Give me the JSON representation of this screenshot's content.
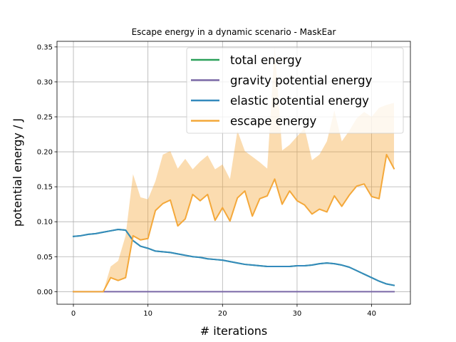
{
  "chart_data": {
    "type": "line",
    "title": "Escape energy in a dynamic scenario - MaskEar",
    "xlabel": "# iterations",
    "ylabel": "potential energy / J",
    "xlim": [
      -2.2,
      45.2
    ],
    "ylim": [
      -0.018,
      0.358
    ],
    "xticks": [
      0,
      10,
      20,
      30,
      40
    ],
    "yticks": [
      0.0,
      0.05,
      0.1,
      0.15,
      0.2,
      0.25,
      0.3,
      0.35
    ],
    "ytick_labels": [
      "0.00",
      "0.05",
      "0.10",
      "0.15",
      "0.20",
      "0.25",
      "0.30",
      "0.35"
    ],
    "grid": true,
    "legend": "top-right",
    "x": [
      0,
      1,
      2,
      3,
      4,
      5,
      6,
      7,
      8,
      9,
      10,
      11,
      12,
      13,
      14,
      15,
      16,
      17,
      18,
      19,
      20,
      21,
      22,
      23,
      24,
      25,
      26,
      27,
      28,
      29,
      30,
      31,
      32,
      33,
      34,
      35,
      36,
      37,
      38,
      39,
      40,
      41,
      42,
      43
    ],
    "series": [
      {
        "name": "total energy",
        "color": "#2ca05a",
        "values": [
          0.079,
          0.08,
          0.082,
          0.083,
          0.085,
          0.087,
          0.089,
          0.088,
          0.073,
          0.065,
          0.062,
          0.058,
          0.057,
          0.056,
          0.054,
          0.052,
          0.05,
          0.049,
          0.047,
          0.046,
          0.045,
          0.043,
          0.041,
          0.039,
          0.038,
          0.037,
          0.036,
          0.036,
          0.036,
          0.036,
          0.037,
          0.037,
          0.038,
          0.04,
          0.041,
          0.04,
          0.038,
          0.035,
          0.03,
          0.025,
          0.02,
          0.015,
          0.011,
          0.009
        ]
      },
      {
        "name": "gravity potential energy",
        "color": "#7a68a6",
        "values": [
          0,
          0,
          0,
          0,
          0,
          0,
          0,
          0,
          0,
          0,
          0,
          0,
          0,
          0,
          0,
          0,
          0,
          0,
          0,
          0,
          0,
          0,
          0,
          0,
          0,
          0,
          0,
          0,
          0,
          0,
          0,
          0,
          0,
          0,
          0,
          0,
          0,
          0,
          0,
          0,
          0,
          0,
          0,
          0
        ]
      },
      {
        "name": "elastic potential energy",
        "color": "#348abd",
        "values": [
          0.079,
          0.08,
          0.082,
          0.083,
          0.085,
          0.087,
          0.089,
          0.088,
          0.073,
          0.065,
          0.062,
          0.058,
          0.057,
          0.056,
          0.054,
          0.052,
          0.05,
          0.049,
          0.047,
          0.046,
          0.045,
          0.043,
          0.041,
          0.039,
          0.038,
          0.037,
          0.036,
          0.036,
          0.036,
          0.036,
          0.037,
          0.037,
          0.038,
          0.04,
          0.041,
          0.04,
          0.038,
          0.035,
          0.03,
          0.025,
          0.02,
          0.015,
          0.011,
          0.009
        ]
      },
      {
        "name": "escape energy",
        "color": "#f4a83a",
        "values": [
          0,
          0,
          0,
          0,
          0,
          0.02,
          0.016,
          0.02,
          0.08,
          0.074,
          0.076,
          0.116,
          0.126,
          0.131,
          0.094,
          0.104,
          0.139,
          0.13,
          0.139,
          0.102,
          0.12,
          0.101,
          0.134,
          0.144,
          0.108,
          0.133,
          0.137,
          0.161,
          0.125,
          0.144,
          0.13,
          0.124,
          0.111,
          0.118,
          0.114,
          0.137,
          0.122,
          0.138,
          0.151,
          0.154,
          0.136,
          0.133,
          0.196,
          0.176
        ],
        "band_lower": [
          0,
          0,
          0,
          0,
          0,
          0.02,
          0.016,
          0.02,
          0.08,
          0.074,
          0.076,
          0.116,
          0.126,
          0.131,
          0.094,
          0.104,
          0.139,
          0.13,
          0.139,
          0.102,
          0.12,
          0.101,
          0.134,
          0.144,
          0.108,
          0.133,
          0.137,
          0.161,
          0.125,
          0.144,
          0.13,
          0.124,
          0.111,
          0.118,
          0.114,
          0.137,
          0.122,
          0.138,
          0.151,
          0.154,
          0.136,
          0.133,
          0.196,
          0.176
        ],
        "band_upper": [
          0,
          0,
          0,
          0,
          0,
          0.036,
          0.044,
          0.08,
          0.168,
          0.135,
          0.132,
          0.158,
          0.196,
          0.201,
          0.176,
          0.19,
          0.175,
          0.186,
          0.195,
          0.175,
          0.182,
          0.161,
          0.23,
          0.201,
          0.193,
          0.185,
          0.176,
          0.35,
          0.202,
          0.21,
          0.222,
          0.234,
          0.188,
          0.196,
          0.215,
          0.259,
          0.215,
          0.23,
          0.248,
          0.257,
          0.25,
          0.263,
          0.267,
          0.27
        ]
      }
    ]
  }
}
